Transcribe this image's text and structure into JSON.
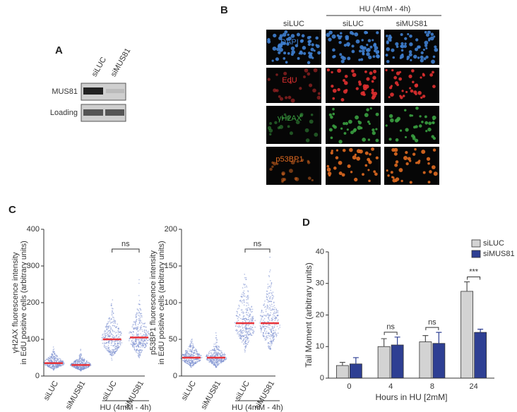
{
  "panel_a": {
    "label": "A",
    "lanes": [
      "siLUC",
      "siMUS81"
    ],
    "rows": [
      "MUS81",
      "Loading"
    ]
  },
  "panel_b": {
    "label": "B",
    "group": "HU (4mM - 4h)",
    "columns": [
      "siLUC",
      "siLUC",
      "siMUS81"
    ],
    "rows": [
      "DAPI",
      "EdU",
      "γH2AX",
      "p53BP1"
    ],
    "row_colors": [
      "#3f7fd0",
      "#e03030",
      "#3aa040",
      "#e06a20"
    ]
  },
  "chart_data": [
    {
      "type": "swarm",
      "panel": "C",
      "ylabel": [
        "γH2AX fluorescence intensity",
        "in EdU positive cells (arbitrary units)"
      ],
      "categories": [
        "siLUC",
        "siMUS81",
        "siLUC",
        "siMUS81"
      ],
      "values": [
        35,
        30,
        100,
        105
      ],
      "color": "#e8333a",
      "point_color": "#7b8fd0",
      "ylim": [
        0,
        400
      ],
      "yticks": [
        0,
        100,
        200,
        300,
        400
      ],
      "group_label": "HU (4mM - 4h)",
      "annotation": "ns"
    },
    {
      "type": "swarm",
      "ylabel": [
        "p53BP1 fluorescence intensity",
        "in EdU positive cells (arbitrary units)"
      ],
      "categories": [
        "siLUC",
        "siMUS81",
        "siLUC",
        "siMUS81"
      ],
      "values": [
        25,
        25,
        72,
        72
      ],
      "color": "#e8333a",
      "point_color": "#7b8fd0",
      "ylim": [
        0,
        200
      ],
      "yticks": [
        0,
        50,
        100,
        150,
        200
      ],
      "group_label": "HU (4mM - 4h)",
      "annotation": "ns"
    },
    {
      "type": "bar",
      "panel": "D",
      "ylabel": "Tail Moment (arbitrary units)",
      "xlabel": "Hours in HU [2mM]",
      "categories": [
        "0",
        "4",
        "8",
        "24"
      ],
      "series": [
        {
          "name": "siLUC",
          "color": "#d3d3d3",
          "values": [
            4,
            10,
            11.5,
            27.5
          ],
          "errors": [
            1,
            2.5,
            2,
            3
          ]
        },
        {
          "name": "siMUS81",
          "color": "#2e3f93",
          "values": [
            4.5,
            10.5,
            11,
            14.5
          ],
          "errors": [
            2,
            2.5,
            3.5,
            1
          ]
        }
      ],
      "ylim": [
        0,
        40
      ],
      "yticks": [
        0,
        10,
        20,
        30,
        40
      ],
      "legend": "upper right",
      "annotations": [
        {
          "index": 1,
          "text": "ns"
        },
        {
          "index": 2,
          "text": "ns"
        },
        {
          "index": 3,
          "text": "***"
        }
      ]
    }
  ]
}
